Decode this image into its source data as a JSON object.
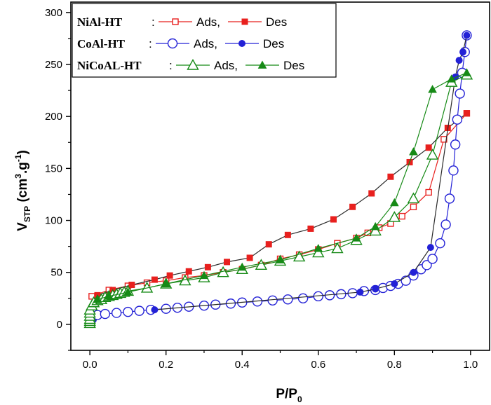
{
  "chart_data": {
    "type": "scatter",
    "xlabel": "P/P",
    "xlabel_sub": "0",
    "ylabel_base": "V",
    "ylabel_sub": "STP",
    "ylabel_units": "(cm",
    "ylabel_sup1": "3",
    "ylabel_mid": ".g",
    "ylabel_sup2": "-1",
    "ylabel_close": ")",
    "xlim": [
      -0.05,
      1.05
    ],
    "ylim": [
      -25,
      310
    ],
    "x_ticks": [
      "0.0",
      "0.2",
      "0.4",
      "0.6",
      "0.8",
      "1.0"
    ],
    "y_ticks": [
      "0",
      "50",
      "100",
      "150",
      "200",
      "250",
      "300"
    ],
    "grid": false,
    "legend_position": "top-left",
    "legend": [
      {
        "name": "NiAl-HT",
        "sep": ":",
        "ads": "Ads,",
        "des": "Des"
      },
      {
        "name": "CoAl-HT",
        "sep": ":",
        "ads": "Ads,",
        "des": "Des"
      },
      {
        "name": "NiCoAL-HT",
        "sep": ":",
        "ads": "Ads,",
        "des": "Des"
      }
    ],
    "series": [
      {
        "group": "NiAl-HT",
        "branch": "Ads",
        "marker": "open-square",
        "color": "#e8201e",
        "points": [
          [
            0.005,
            27
          ],
          [
            0.05,
            33
          ],
          [
            0.1,
            37
          ],
          [
            0.15,
            40
          ],
          [
            0.2,
            42
          ],
          [
            0.25,
            45
          ],
          [
            0.3,
            47
          ],
          [
            0.35,
            50
          ],
          [
            0.4,
            53
          ],
          [
            0.45,
            57
          ],
          [
            0.5,
            63
          ],
          [
            0.55,
            67
          ],
          [
            0.6,
            72
          ],
          [
            0.65,
            78
          ],
          [
            0.7,
            83
          ],
          [
            0.73,
            88
          ],
          [
            0.76,
            93
          ],
          [
            0.79,
            97
          ],
          [
            0.82,
            104
          ],
          [
            0.85,
            113
          ],
          [
            0.89,
            127
          ],
          [
            0.93,
            178
          ],
          [
            0.99,
            203
          ]
        ]
      },
      {
        "group": "NiAl-HT",
        "branch": "Des",
        "marker": "filled-square",
        "color": "#e8201e",
        "points": [
          [
            0.99,
            203
          ],
          [
            0.94,
            189
          ],
          [
            0.89,
            170
          ],
          [
            0.84,
            156
          ],
          [
            0.79,
            142
          ],
          [
            0.74,
            126
          ],
          [
            0.69,
            113
          ],
          [
            0.64,
            101
          ],
          [
            0.58,
            92
          ],
          [
            0.52,
            86
          ],
          [
            0.47,
            77
          ],
          [
            0.42,
            64
          ],
          [
            0.36,
            60
          ],
          [
            0.31,
            55
          ],
          [
            0.26,
            51
          ],
          [
            0.21,
            47
          ],
          [
            0.17,
            43
          ],
          [
            0.11,
            38
          ],
          [
            0.06,
            33
          ],
          [
            0.02,
            28
          ]
        ]
      },
      {
        "group": "CoAl-HT",
        "branch": "Ads",
        "marker": "open-circle",
        "color": "#2321d6",
        "points": [
          [
            0.005,
            5
          ],
          [
            0.007,
            7
          ],
          [
            0.009,
            8
          ],
          [
            0.02,
            9
          ],
          [
            0.04,
            10
          ],
          [
            0.07,
            11
          ],
          [
            0.1,
            12
          ],
          [
            0.13,
            13
          ],
          [
            0.16,
            14
          ],
          [
            0.2,
            15
          ],
          [
            0.23,
            16
          ],
          [
            0.26,
            17
          ],
          [
            0.3,
            18
          ],
          [
            0.33,
            19
          ],
          [
            0.37,
            20
          ],
          [
            0.4,
            21
          ],
          [
            0.44,
            22
          ],
          [
            0.48,
            23
          ],
          [
            0.52,
            24
          ],
          [
            0.56,
            25
          ],
          [
            0.6,
            27
          ],
          [
            0.63,
            28
          ],
          [
            0.66,
            29
          ],
          [
            0.69,
            30
          ],
          [
            0.72,
            32
          ],
          [
            0.75,
            33
          ],
          [
            0.77,
            35
          ],
          [
            0.79,
            37
          ],
          [
            0.81,
            39
          ],
          [
            0.83,
            42
          ],
          [
            0.85,
            47
          ],
          [
            0.87,
            53
          ],
          [
            0.885,
            57
          ],
          [
            0.9,
            63
          ],
          [
            0.92,
            78
          ],
          [
            0.935,
            96
          ],
          [
            0.945,
            121
          ],
          [
            0.955,
            148
          ],
          [
            0.96,
            173
          ],
          [
            0.965,
            197
          ],
          [
            0.972,
            222
          ],
          [
            0.978,
            242
          ],
          [
            0.985,
            262
          ],
          [
            0.99,
            278
          ]
        ]
      },
      {
        "group": "CoAl-HT",
        "branch": "Des",
        "marker": "filled-circle",
        "color": "#2321d6",
        "points": [
          [
            0.99,
            278
          ],
          [
            0.98,
            262
          ],
          [
            0.97,
            254
          ],
          [
            0.96,
            238
          ],
          [
            0.895,
            74
          ],
          [
            0.85,
            50
          ],
          [
            0.8,
            39
          ],
          [
            0.75,
            34
          ],
          [
            0.71,
            31
          ],
          [
            0.17,
            14
          ]
        ]
      },
      {
        "group": "NiCoAL-HT",
        "branch": "Ads",
        "marker": "open-triangle",
        "color": "#168a16",
        "points": [
          [
            0.0,
            1
          ],
          [
            0.0,
            3
          ],
          [
            0.0,
            5
          ],
          [
            0.0,
            8
          ],
          [
            0.0,
            11
          ],
          [
            0.0,
            14
          ],
          [
            0.005,
            18
          ],
          [
            0.01,
            21
          ],
          [
            0.02,
            23
          ],
          [
            0.03,
            24
          ],
          [
            0.04,
            26
          ],
          [
            0.05,
            27
          ],
          [
            0.06,
            28
          ],
          [
            0.07,
            29
          ],
          [
            0.08,
            30
          ],
          [
            0.09,
            31
          ],
          [
            0.1,
            32
          ],
          [
            0.15,
            35
          ],
          [
            0.2,
            39
          ],
          [
            0.25,
            42
          ],
          [
            0.3,
            45
          ],
          [
            0.35,
            50
          ],
          [
            0.4,
            53
          ],
          [
            0.45,
            57
          ],
          [
            0.5,
            61
          ],
          [
            0.55,
            65
          ],
          [
            0.6,
            69
          ],
          [
            0.65,
            73
          ],
          [
            0.7,
            81
          ],
          [
            0.75,
            90
          ],
          [
            0.8,
            103
          ],
          [
            0.85,
            121
          ],
          [
            0.9,
            163
          ],
          [
            0.95,
            233
          ],
          [
            0.99,
            240
          ]
        ]
      },
      {
        "group": "NiCoAL-HT",
        "branch": "Des",
        "marker": "filled-triangle",
        "color": "#168a16",
        "points": [
          [
            0.99,
            242
          ],
          [
            0.95,
            236
          ],
          [
            0.9,
            226
          ],
          [
            0.85,
            166
          ],
          [
            0.8,
            117
          ],
          [
            0.75,
            94
          ],
          [
            0.7,
            83
          ],
          [
            0.6,
            73
          ],
          [
            0.5,
            62
          ],
          [
            0.4,
            55
          ],
          [
            0.3,
            47
          ],
          [
            0.2,
            39
          ],
          [
            0.1,
            31
          ],
          [
            0.05,
            27
          ],
          [
            0.02,
            24
          ]
        ]
      }
    ]
  }
}
